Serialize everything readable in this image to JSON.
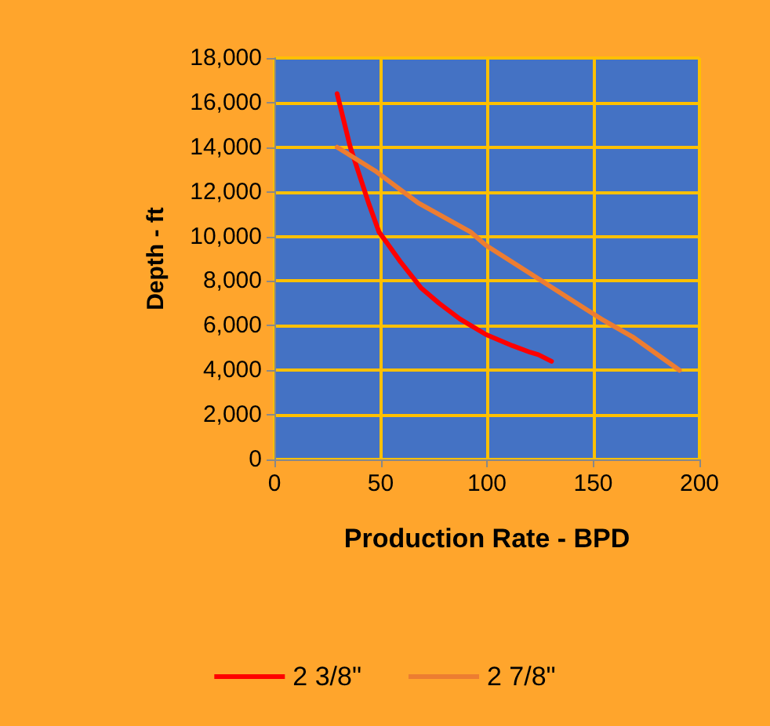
{
  "chart_data": {
    "type": "line",
    "xlabel": "Production Rate - BPD",
    "ylabel": "Depth - ft",
    "xlim": [
      0,
      200
    ],
    "xticks": [
      0,
      50,
      100,
      150,
      200
    ],
    "ylim": [
      0,
      18000
    ],
    "yticks": [
      {
        "value": 0,
        "label": "0"
      },
      {
        "value": 2000,
        "label": "2,000"
      },
      {
        "value": 4000,
        "label": "4,000"
      },
      {
        "value": 6000,
        "label": "6,000"
      },
      {
        "value": 8000,
        "label": "8,000"
      },
      {
        "value": 10000,
        "label": "10,000"
      },
      {
        "value": 12000,
        "label": "12,000"
      },
      {
        "value": 14000,
        "label": "14,000"
      },
      {
        "value": 16000,
        "label": "16,000"
      },
      {
        "value": 18000,
        "label": "18,000"
      }
    ],
    "grid": true,
    "legend": "bottom",
    "marker": "none",
    "line_style": "solid",
    "series": [
      {
        "name": "2 3/8\"",
        "color": "#ff0000",
        "x": [
          29.5,
          35.7,
          44.3,
          49.2,
          53,
          59,
          68.9,
          77.5,
          87.3,
          99.6,
          112,
          120.5,
          124.2,
          130.4
        ],
        "values": [
          16400,
          14000,
          11500,
          10200,
          9700,
          8900,
          7700,
          7000,
          6300,
          5600,
          5100,
          4800,
          4700,
          4400
        ]
      },
      {
        "name": "2 7/8\"",
        "color": "#ed7d31",
        "x": [
          29.5,
          48,
          67.7,
          92.3,
          99.6,
          119.3,
          139,
          153.8,
          168.5,
          190.6
        ],
        "values": [
          14000,
          12900,
          11500,
          10200,
          9600,
          8400,
          7200,
          6300,
          5500,
          4000
        ]
      }
    ]
  }
}
